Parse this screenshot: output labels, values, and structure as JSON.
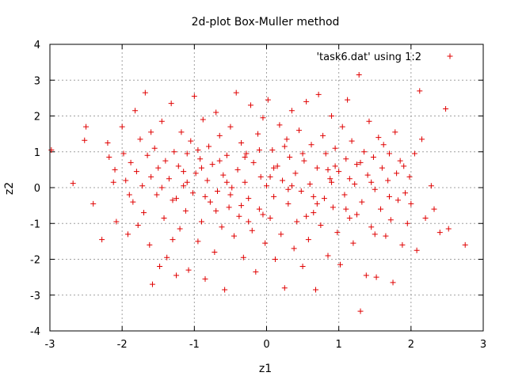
{
  "chart_data": {
    "type": "scatter",
    "title": "2d-plot Box-Muller method",
    "xlabel": "z1",
    "ylabel": "z2",
    "xlim": [
      -3,
      3
    ],
    "ylim": [
      -4,
      4
    ],
    "xticks": [
      "-3",
      "-2",
      "-1",
      "0",
      "1",
      "2",
      "3"
    ],
    "yticks": [
      "-4",
      "-3",
      "-2",
      "-1",
      "0",
      "1",
      "2",
      "3",
      "4"
    ],
    "grid": true,
    "legend_position": "top-right",
    "series": [
      {
        "name": "'task6.dat' using 1:2",
        "color": "#e00000",
        "marker": "plus",
        "points": [
          [
            -2.98,
            1.05
          ],
          [
            -2.68,
            0.12
          ],
          [
            -2.52,
            1.32
          ],
          [
            -2.5,
            1.7
          ],
          [
            -2.4,
            -0.45
          ],
          [
            -2.28,
            -1.45
          ],
          [
            -2.2,
            1.25
          ],
          [
            -2.18,
            0.85
          ],
          [
            -2.12,
            0.15
          ],
          [
            -2.08,
            -0.95
          ],
          [
            -2.0,
            1.7
          ],
          [
            -1.98,
            0.95
          ],
          [
            -1.95,
            0.2
          ],
          [
            -1.92,
            -1.3
          ],
          [
            -1.88,
            0.7
          ],
          [
            -1.85,
            -0.4
          ],
          [
            -1.82,
            2.15
          ],
          [
            -1.8,
            0.45
          ],
          [
            -1.78,
            -1.05
          ],
          [
            -1.75,
            1.35
          ],
          [
            -1.72,
            0.05
          ],
          [
            -1.7,
            -0.7
          ],
          [
            -1.68,
            2.65
          ],
          [
            -1.65,
            0.9
          ],
          [
            -1.62,
            -1.6
          ],
          [
            -1.6,
            0.3
          ],
          [
            -1.58,
            -2.7
          ],
          [
            -1.55,
            1.1
          ],
          [
            -1.52,
            -0.2
          ],
          [
            -1.5,
            0.55
          ],
          [
            -1.48,
            -2.2
          ],
          [
            -1.45,
            1.85
          ],
          [
            -1.42,
            -0.85
          ],
          [
            -1.4,
            0.75
          ],
          [
            -1.38,
            -1.95
          ],
          [
            -1.35,
            0.25
          ],
          [
            -1.32,
            2.35
          ],
          [
            -1.3,
            -0.35
          ],
          [
            -1.28,
            1.0
          ],
          [
            -1.25,
            -2.45
          ],
          [
            -1.22,
            0.6
          ],
          [
            -1.2,
            -1.15
          ],
          [
            -1.18,
            1.55
          ],
          [
            -1.15,
            0.05
          ],
          [
            -1.12,
            -0.65
          ],
          [
            -1.1,
            0.95
          ],
          [
            -1.08,
            -2.3
          ],
          [
            -1.05,
            1.3
          ],
          [
            -1.02,
            -0.15
          ],
          [
            -1.0,
            2.55
          ],
          [
            -0.98,
            0.4
          ],
          [
            -0.95,
            -1.5
          ],
          [
            -0.92,
            0.8
          ],
          [
            -0.9,
            -0.95
          ],
          [
            -0.88,
            1.9
          ],
          [
            -0.85,
            -2.55
          ],
          [
            -0.82,
            0.2
          ],
          [
            -0.8,
            1.15
          ],
          [
            -0.78,
            -0.4
          ],
          [
            -0.75,
            0.65
          ],
          [
            -0.72,
            -1.8
          ],
          [
            -0.7,
            2.1
          ],
          [
            -0.68,
            -0.1
          ],
          [
            -0.65,
            1.45
          ],
          [
            -0.62,
            -1.1
          ],
          [
            -0.6,
            0.35
          ],
          [
            -0.58,
            -2.85
          ],
          [
            -0.55,
            0.9
          ],
          [
            -0.52,
            -0.55
          ],
          [
            -0.5,
            1.7
          ],
          [
            -0.48,
            0.0
          ],
          [
            -0.45,
            -1.35
          ],
          [
            -0.42,
            2.65
          ],
          [
            -0.4,
            0.5
          ],
          [
            -0.38,
            -0.8
          ],
          [
            -0.35,
            1.25
          ],
          [
            -0.32,
            -1.95
          ],
          [
            -0.3,
            0.15
          ],
          [
            -0.28,
            0.95
          ],
          [
            -0.25,
            -0.3
          ],
          [
            -0.22,
            2.3
          ],
          [
            -0.2,
            -1.2
          ],
          [
            -0.18,
            0.7
          ],
          [
            -0.15,
            -2.35
          ],
          [
            -0.12,
            1.5
          ],
          [
            -0.1,
            -0.6
          ],
          [
            -0.08,
            0.3
          ],
          [
            -0.05,
            1.95
          ],
          [
            -0.02,
            -1.55
          ],
          [
            0.0,
            0.05
          ],
          [
            0.02,
            2.45
          ],
          [
            0.05,
            -0.85
          ],
          [
            0.08,
            1.05
          ],
          [
            0.1,
            -0.25
          ],
          [
            0.12,
            -2.0
          ],
          [
            0.15,
            0.6
          ],
          [
            0.18,
            1.75
          ],
          [
            0.2,
            -1.3
          ],
          [
            0.22,
            0.2
          ],
          [
            0.25,
            -2.8
          ],
          [
            0.28,
            1.35
          ],
          [
            0.3,
            -0.45
          ],
          [
            0.32,
            0.85
          ],
          [
            0.35,
            2.15
          ],
          [
            0.38,
            -1.7
          ],
          [
            0.4,
            0.4
          ],
          [
            0.42,
            -0.95
          ],
          [
            0.45,
            1.6
          ],
          [
            0.48,
            -0.1
          ],
          [
            0.5,
            -2.2
          ],
          [
            0.52,
            0.75
          ],
          [
            0.55,
            2.4
          ],
          [
            0.58,
            -1.45
          ],
          [
            0.6,
            0.1
          ],
          [
            0.62,
            1.2
          ],
          [
            0.65,
            -0.7
          ],
          [
            0.68,
            -2.85
          ],
          [
            0.7,
            0.55
          ],
          [
            0.72,
            2.6
          ],
          [
            0.75,
            -1.05
          ],
          [
            0.78,
            1.45
          ],
          [
            0.8,
            -0.3
          ],
          [
            0.82,
            0.95
          ],
          [
            0.85,
            -1.9
          ],
          [
            0.88,
            0.25
          ],
          [
            0.9,
            2.0
          ],
          [
            0.92,
            -0.55
          ],
          [
            0.95,
            1.1
          ],
          [
            0.98,
            -1.25
          ],
          [
            1.0,
            0.45
          ],
          [
            1.02,
            -2.15
          ],
          [
            1.05,
            1.7
          ],
          [
            1.08,
            -0.2
          ],
          [
            1.1,
            0.8
          ],
          [
            1.12,
            2.45
          ],
          [
            1.15,
            -0.85
          ],
          [
            1.18,
            1.3
          ],
          [
            1.2,
            -1.55
          ],
          [
            1.22,
            0.1
          ],
          [
            1.25,
            0.65
          ],
          [
            1.28,
            3.15
          ],
          [
            1.3,
            -3.45
          ],
          [
            1.32,
            -0.4
          ],
          [
            1.35,
            1.0
          ],
          [
            1.38,
            -2.45
          ],
          [
            1.4,
            0.35
          ],
          [
            1.42,
            1.85
          ],
          [
            1.45,
            -1.1
          ],
          [
            1.48,
            0.85
          ],
          [
            1.5,
            -0.05
          ],
          [
            1.52,
            -2.5
          ],
          [
            1.55,
            1.4
          ],
          [
            1.58,
            -0.6
          ],
          [
            1.6,
            0.55
          ],
          [
            1.62,
            1.2
          ],
          [
            1.65,
            -1.35
          ],
          [
            1.68,
            0.2
          ],
          [
            1.7,
            0.95
          ],
          [
            1.72,
            -0.9
          ],
          [
            1.75,
            -2.65
          ],
          [
            1.78,
            1.55
          ],
          [
            1.8,
            0.4
          ],
          [
            1.82,
            -0.35
          ],
          [
            1.85,
            0.75
          ],
          [
            1.88,
            -1.6
          ],
          [
            1.9,
            0.6
          ],
          [
            1.92,
            -0.15
          ],
          [
            1.95,
            -1.0
          ],
          [
            1.98,
            0.3
          ],
          [
            2.0,
            -0.45
          ],
          [
            2.05,
            0.95
          ],
          [
            2.08,
            -1.75
          ],
          [
            2.12,
            2.7
          ],
          [
            2.15,
            1.35
          ],
          [
            2.2,
            -0.85
          ],
          [
            2.28,
            0.05
          ],
          [
            2.32,
            -0.6
          ],
          [
            2.4,
            -1.25
          ],
          [
            2.48,
            2.2
          ],
          [
            2.52,
            -1.15
          ],
          [
            2.75,
            -1.6
          ],
          [
            -2.1,
            0.5
          ],
          [
            -1.9,
            -0.2
          ],
          [
            -1.6,
            1.55
          ],
          [
            -1.3,
            -1.45
          ],
          [
            -1.1,
            0.15
          ],
          [
            -0.9,
            0.55
          ],
          [
            -0.7,
            -0.65
          ],
          [
            -0.5,
            -0.2
          ],
          [
            -0.3,
            0.85
          ],
          [
            -0.1,
            1.05
          ],
          [
            0.1,
            0.55
          ],
          [
            0.3,
            -0.05
          ],
          [
            0.5,
            0.95
          ],
          [
            0.7,
            -0.45
          ],
          [
            0.9,
            0.15
          ],
          [
            1.1,
            -0.6
          ],
          [
            1.3,
            0.7
          ],
          [
            1.5,
            -1.3
          ],
          [
            1.7,
            -0.25
          ],
          [
            -1.45,
            0.0
          ],
          [
            -1.15,
            0.45
          ],
          [
            -0.85,
            -0.25
          ],
          [
            -0.55,
            0.15
          ],
          [
            -0.25,
            -0.95
          ],
          [
            0.05,
            0.3
          ],
          [
            0.35,
            0.05
          ],
          [
            0.65,
            -0.25
          ],
          [
            0.95,
            0.6
          ],
          [
            1.25,
            -0.75
          ],
          [
            -0.95,
            1.05
          ],
          [
            -0.65,
            0.75
          ],
          [
            -0.35,
            -0.5
          ],
          [
            -0.05,
            -0.75
          ],
          [
            0.25,
            1.15
          ],
          [
            0.55,
            -0.8
          ],
          [
            0.85,
            0.5
          ],
          [
            1.15,
            0.25
          ],
          [
            -1.25,
            -0.3
          ],
          [
            1.45,
            0.15
          ]
        ]
      }
    ]
  }
}
